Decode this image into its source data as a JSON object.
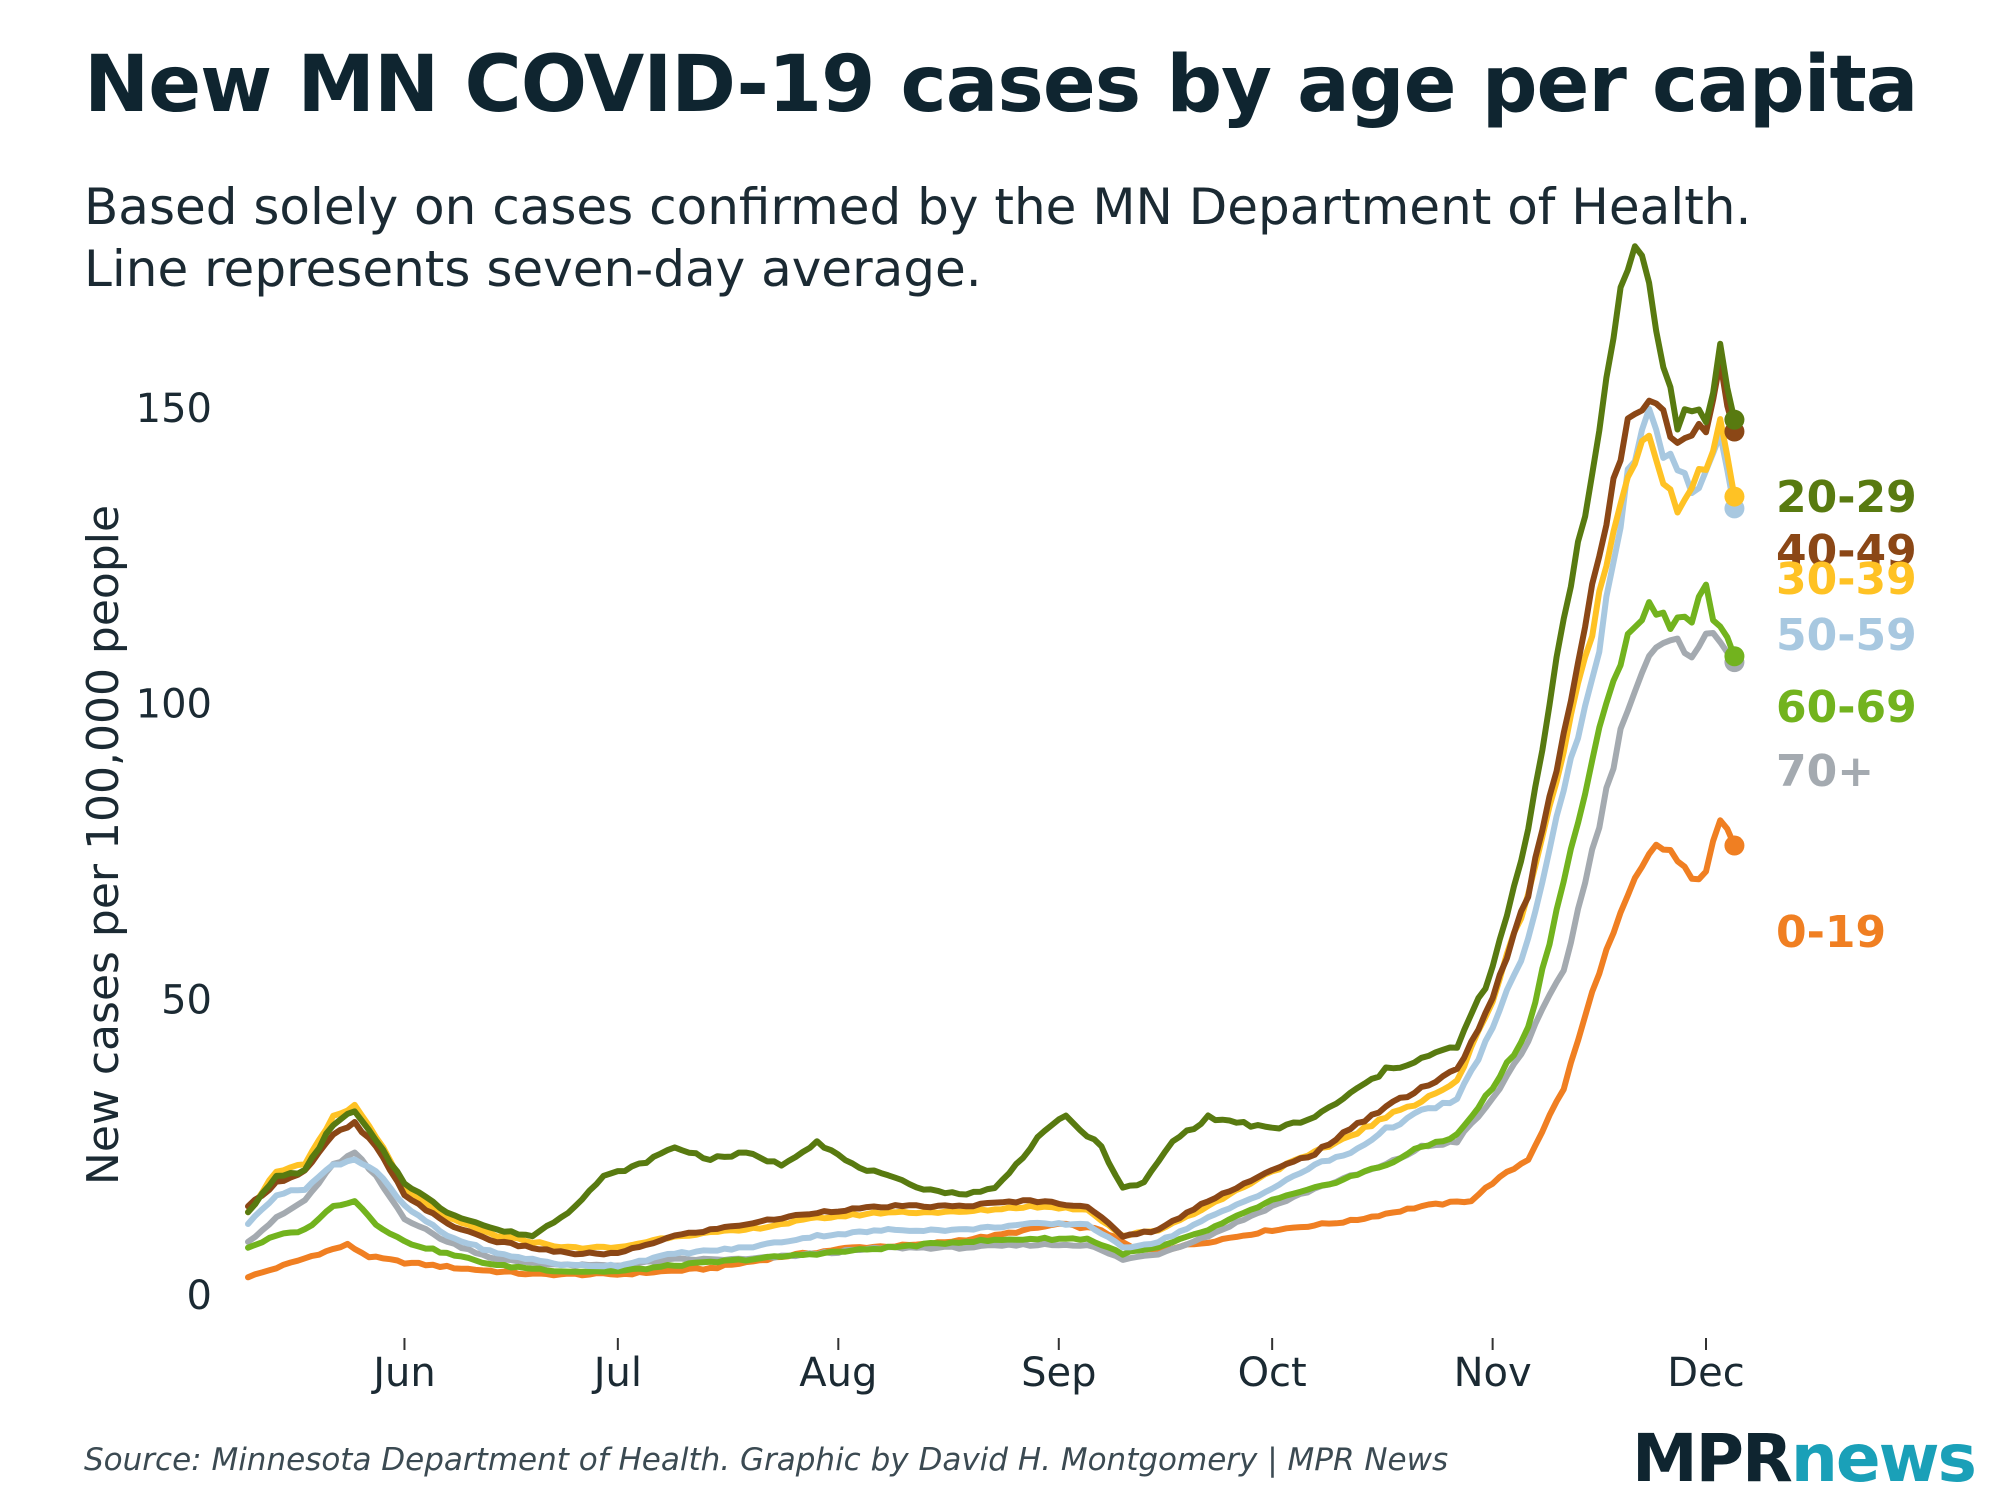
{
  "header": {
    "title": "New MN COVID-19 cases by age per capita",
    "subtitle_line1": "Based solely on cases confirmed by the MN Department of Health.",
    "subtitle_line2": "Line represents seven-day average."
  },
  "footer": {
    "source": "Source: Minnesota Department of Health. Graphic by David H. Montgomery | MPR News",
    "logo_part1": "MPR",
    "logo_part2": "news"
  },
  "chart_data": {
    "type": "line",
    "ylabel": "New cases per 100,000 people",
    "xlabel": "",
    "ylim": [
      0,
      175
    ],
    "xlim": [
      0,
      214
    ],
    "yticks": [
      0,
      50,
      100,
      150
    ],
    "xticks": [
      {
        "label": "Jun",
        "day": 22
      },
      {
        "label": "Jul",
        "day": 52
      },
      {
        "label": "Aug",
        "day": 83
      },
      {
        "label": "Sep",
        "day": 114
      },
      {
        "label": "Oct",
        "day": 144
      },
      {
        "label": "Nov",
        "day": 175
      },
      {
        "label": "Dec",
        "day": 205
      }
    ],
    "series": [
      {
        "name": "0-19",
        "color": "#f07f22",
        "points": [
          [
            0,
            3
          ],
          [
            5,
            5
          ],
          [
            10,
            7
          ],
          [
            14,
            8.5
          ],
          [
            17,
            6.5
          ],
          [
            22,
            5.5
          ],
          [
            30,
            4.5
          ],
          [
            40,
            3.5
          ],
          [
            52,
            3.5
          ],
          [
            65,
            4.5
          ],
          [
            75,
            6.5
          ],
          [
            85,
            8
          ],
          [
            95,
            8.5
          ],
          [
            105,
            10
          ],
          [
            114,
            12
          ],
          [
            120,
            11
          ],
          [
            125,
            7.5
          ],
          [
            130,
            8
          ],
          [
            135,
            9
          ],
          [
            144,
            11
          ],
          [
            155,
            12.5
          ],
          [
            165,
            15
          ],
          [
            172,
            16
          ],
          [
            175,
            19
          ],
          [
            180,
            23
          ],
          [
            185,
            35
          ],
          [
            190,
            55
          ],
          [
            195,
            70
          ],
          [
            198,
            76
          ],
          [
            200,
            75
          ],
          [
            203,
            70
          ],
          [
            205,
            72
          ],
          [
            207,
            80
          ],
          [
            209,
            76
          ]
        ],
        "end_value": 76
      },
      {
        "name": "70+",
        "color": "#a4aab0",
        "points": [
          [
            0,
            9
          ],
          [
            4,
            13
          ],
          [
            8,
            16
          ],
          [
            12,
            22
          ],
          [
            15,
            24
          ],
          [
            18,
            20
          ],
          [
            22,
            13
          ],
          [
            28,
            9
          ],
          [
            35,
            6
          ],
          [
            45,
            5
          ],
          [
            52,
            5
          ],
          [
            60,
            6
          ],
          [
            70,
            6
          ],
          [
            80,
            7
          ],
          [
            90,
            8
          ],
          [
            100,
            8
          ],
          [
            110,
            8.5
          ],
          [
            118,
            8.5
          ],
          [
            123,
            6
          ],
          [
            128,
            7
          ],
          [
            135,
            10
          ],
          [
            144,
            15
          ],
          [
            150,
            18
          ],
          [
            155,
            20
          ],
          [
            160,
            22
          ],
          [
            165,
            25
          ],
          [
            170,
            26
          ],
          [
            175,
            33
          ],
          [
            180,
            43
          ],
          [
            185,
            55
          ],
          [
            190,
            80
          ],
          [
            194,
            100
          ],
          [
            197,
            108
          ],
          [
            200,
            110
          ],
          [
            203,
            109
          ],
          [
            205,
            112
          ],
          [
            207,
            110
          ],
          [
            209,
            107
          ]
        ],
        "end_value": 107
      },
      {
        "name": "60-69",
        "color": "#72b31e",
        "points": [
          [
            0,
            8
          ],
          [
            4,
            10
          ],
          [
            8,
            11
          ],
          [
            12,
            15
          ],
          [
            15,
            16
          ],
          [
            18,
            12
          ],
          [
            22,
            9
          ],
          [
            28,
            7
          ],
          [
            35,
            5
          ],
          [
            45,
            4
          ],
          [
            52,
            4
          ],
          [
            60,
            5
          ],
          [
            70,
            6
          ],
          [
            80,
            7
          ],
          [
            90,
            8
          ],
          [
            100,
            9
          ],
          [
            110,
            9.5
          ],
          [
            118,
            9.5
          ],
          [
            123,
            7
          ],
          [
            128,
            8
          ],
          [
            135,
            11
          ],
          [
            144,
            16
          ],
          [
            150,
            18
          ],
          [
            155,
            20
          ],
          [
            160,
            22
          ],
          [
            165,
            25
          ],
          [
            170,
            27
          ],
          [
            175,
            35
          ],
          [
            180,
            45
          ],
          [
            185,
            70
          ],
          [
            190,
            95
          ],
          [
            194,
            112
          ],
          [
            197,
            116
          ],
          [
            200,
            114
          ],
          [
            203,
            115
          ],
          [
            205,
            119
          ],
          [
            207,
            112
          ],
          [
            209,
            108
          ]
        ],
        "end_value": 108
      },
      {
        "name": "50-59",
        "color": "#a8c8e0",
        "points": [
          [
            0,
            12
          ],
          [
            4,
            17
          ],
          [
            8,
            18
          ],
          [
            12,
            22
          ],
          [
            15,
            23
          ],
          [
            18,
            21
          ],
          [
            22,
            15
          ],
          [
            28,
            10
          ],
          [
            35,
            7
          ],
          [
            45,
            5
          ],
          [
            52,
            5
          ],
          [
            60,
            7
          ],
          [
            70,
            8
          ],
          [
            80,
            10
          ],
          [
            90,
            11
          ],
          [
            100,
            11
          ],
          [
            110,
            12
          ],
          [
            118,
            12
          ],
          [
            123,
            8
          ],
          [
            128,
            9
          ],
          [
            135,
            13
          ],
          [
            144,
            18
          ],
          [
            150,
            22
          ],
          [
            155,
            24
          ],
          [
            160,
            28
          ],
          [
            165,
            31
          ],
          [
            170,
            33
          ],
          [
            175,
            45
          ],
          [
            180,
            60
          ],
          [
            185,
            85
          ],
          [
            190,
            110
          ],
          [
            194,
            138
          ],
          [
            197,
            148
          ],
          [
            199,
            143
          ],
          [
            201,
            140
          ],
          [
            203,
            135
          ],
          [
            205,
            140
          ],
          [
            207,
            145
          ],
          [
            209,
            133
          ]
        ],
        "end_value": 133
      },
      {
        "name": "30-39",
        "color": "#ffc224",
        "points": [
          [
            0,
            14
          ],
          [
            4,
            21
          ],
          [
            8,
            22
          ],
          [
            12,
            30
          ],
          [
            15,
            32
          ],
          [
            18,
            27
          ],
          [
            22,
            18
          ],
          [
            28,
            13
          ],
          [
            35,
            10
          ],
          [
            45,
            8
          ],
          [
            52,
            8
          ],
          [
            60,
            10
          ],
          [
            70,
            11
          ],
          [
            80,
            13
          ],
          [
            90,
            14
          ],
          [
            100,
            14
          ],
          [
            110,
            15
          ],
          [
            118,
            14.5
          ],
          [
            123,
            10
          ],
          [
            128,
            11
          ],
          [
            135,
            15
          ],
          [
            144,
            21
          ],
          [
            150,
            24
          ],
          [
            155,
            27
          ],
          [
            160,
            30
          ],
          [
            165,
            33
          ],
          [
            170,
            36
          ],
          [
            175,
            50
          ],
          [
            180,
            68
          ],
          [
            185,
            92
          ],
          [
            190,
            118
          ],
          [
            194,
            140
          ],
          [
            197,
            146
          ],
          [
            199,
            138
          ],
          [
            201,
            132
          ],
          [
            203,
            136
          ],
          [
            205,
            140
          ],
          [
            207,
            148
          ],
          [
            209,
            135
          ]
        ],
        "end_value": 135
      },
      {
        "name": "40-49",
        "color": "#8b4716",
        "points": [
          [
            0,
            15
          ],
          [
            4,
            19
          ],
          [
            8,
            21
          ],
          [
            12,
            27
          ],
          [
            15,
            29
          ],
          [
            18,
            25
          ],
          [
            22,
            17
          ],
          [
            28,
            12
          ],
          [
            35,
            9
          ],
          [
            45,
            7
          ],
          [
            52,
            7
          ],
          [
            60,
            10
          ],
          [
            70,
            12
          ],
          [
            80,
            14
          ],
          [
            90,
            15
          ],
          [
            100,
            15
          ],
          [
            110,
            16
          ],
          [
            118,
            15
          ],
          [
            123,
            10
          ],
          [
            128,
            11
          ],
          [
            135,
            16
          ],
          [
            144,
            21
          ],
          [
            150,
            24
          ],
          [
            155,
            28
          ],
          [
            160,
            32
          ],
          [
            165,
            35
          ],
          [
            170,
            38
          ],
          [
            175,
            50
          ],
          [
            180,
            68
          ],
          [
            185,
            95
          ],
          [
            190,
            125
          ],
          [
            194,
            148
          ],
          [
            197,
            153
          ],
          [
            199,
            150
          ],
          [
            201,
            143
          ],
          [
            203,
            147
          ],
          [
            205,
            145
          ],
          [
            207,
            158
          ],
          [
            209,
            146
          ]
        ],
        "end_value": 146
      },
      {
        "name": "20-29",
        "color": "#587a10",
        "points": [
          [
            0,
            14
          ],
          [
            4,
            20
          ],
          [
            8,
            21
          ],
          [
            12,
            29
          ],
          [
            15,
            31
          ],
          [
            18,
            26
          ],
          [
            22,
            19
          ],
          [
            28,
            14
          ],
          [
            35,
            11
          ],
          [
            40,
            10
          ],
          [
            45,
            14
          ],
          [
            50,
            20
          ],
          [
            55,
            22
          ],
          [
            60,
            25
          ],
          [
            65,
            23
          ],
          [
            70,
            24
          ],
          [
            75,
            22
          ],
          [
            80,
            26
          ],
          [
            85,
            22
          ],
          [
            90,
            20
          ],
          [
            95,
            18
          ],
          [
            100,
            17
          ],
          [
            105,
            18
          ],
          [
            108,
            22
          ],
          [
            112,
            28
          ],
          [
            115,
            30
          ],
          [
            120,
            25
          ],
          [
            123,
            18
          ],
          [
            126,
            19
          ],
          [
            130,
            26
          ],
          [
            135,
            30
          ],
          [
            140,
            29
          ],
          [
            144,
            28
          ],
          [
            150,
            30
          ],
          [
            155,
            34
          ],
          [
            160,
            38
          ],
          [
            165,
            40
          ],
          [
            170,
            42
          ],
          [
            175,
            55
          ],
          [
            180,
            78
          ],
          [
            185,
            115
          ],
          [
            190,
            145
          ],
          [
            193,
            170
          ],
          [
            195,
            178
          ],
          [
            197,
            172
          ],
          [
            199,
            158
          ],
          [
            201,
            147
          ],
          [
            203,
            150
          ],
          [
            205,
            148
          ],
          [
            207,
            160
          ],
          [
            209,
            148
          ]
        ],
        "end_value": 148
      }
    ],
    "end_labels": [
      {
        "name": "20-29",
        "label": "20-29",
        "color": "#587a10"
      },
      {
        "name": "40-49",
        "label": "40-49",
        "color": "#8b4716"
      },
      {
        "name": "30-39",
        "label": "30-39",
        "color": "#ffc224"
      },
      {
        "name": "50-59",
        "label": "50-59",
        "color": "#a8c8e0"
      },
      {
        "name": "60-69",
        "label": "60-69",
        "color": "#72b31e"
      },
      {
        "name": "70+",
        "label": "70+",
        "color": "#a4aab0"
      },
      {
        "name": "0-19",
        "label": "0-19",
        "color": "#f07f22"
      }
    ]
  }
}
